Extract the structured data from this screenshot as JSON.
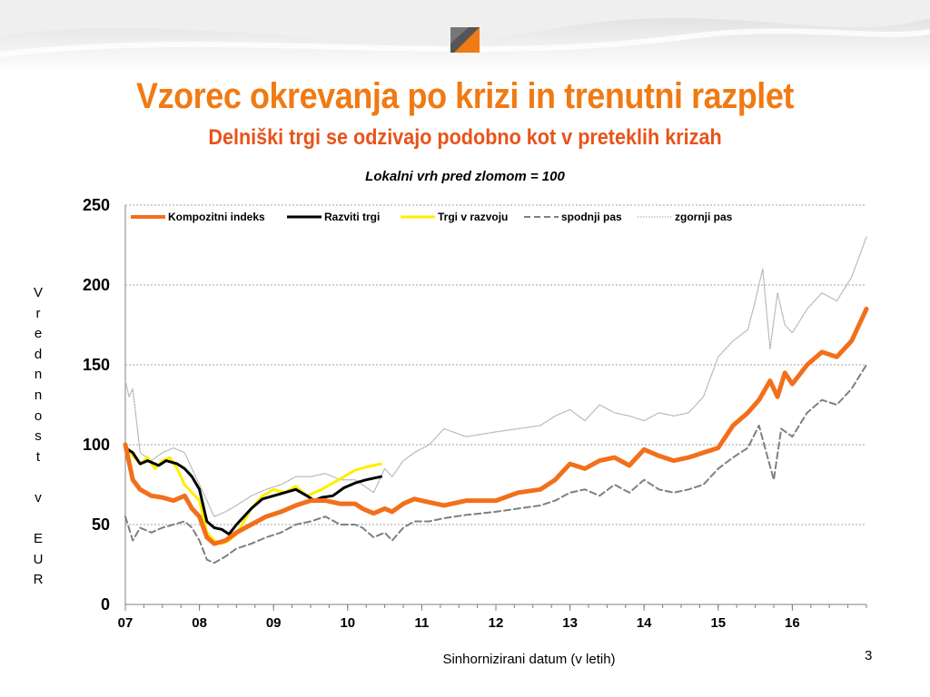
{
  "slide": {
    "title": "Vzorec okrevanja po krizi in trenutni razplet",
    "subtitle": "Delniški trgi se odzivajo podobno kot v preteklih krizah",
    "page_number": "3",
    "colors": {
      "title": "#f07a13",
      "subtitle": "#e8531a"
    }
  },
  "chart_data": {
    "type": "line",
    "title": "Lokalni vrh pred zlomom = 100",
    "xlabel": "Sinhornizirani datum (v letih)",
    "ylabel": "V\nr\ne\nd\nn\nn\no\ns\nt\n \nv\n \nE\nU\nR",
    "ylim": [
      0,
      250
    ],
    "yticks": [
      0,
      50,
      100,
      150,
      200,
      250
    ],
    "xlim": [
      2007.0,
      2017.0
    ],
    "xtick_labels": [
      "07",
      "08",
      "09",
      "10",
      "11",
      "12",
      "13",
      "14",
      "15",
      "16"
    ],
    "xtick_values": [
      2007.0,
      2008.0,
      2009.0,
      2010.0,
      2011.0,
      2012.0,
      2013.0,
      2014.0,
      2015.0,
      2016.0
    ],
    "grid": true,
    "legend_position": "top",
    "series": [
      {
        "name": "Kompozitni indeks",
        "color": "#f26f1c",
        "style": "solid",
        "width": 5,
        "x": [
          2007.0,
          2007.1,
          2007.2,
          2007.35,
          2007.5,
          2007.65,
          2007.8,
          2007.9,
          2008.0,
          2008.1,
          2008.2,
          2008.35,
          2008.5,
          2008.7,
          2008.9,
          2009.1,
          2009.3,
          2009.5,
          2009.7,
          2009.9,
          2010.1,
          2010.2,
          2010.35,
          2010.5,
          2010.6,
          2010.75,
          2010.9,
          2011.1,
          2011.3,
          2011.6,
          2012.0,
          2012.3,
          2012.6,
          2012.8,
          2013.0,
          2013.2,
          2013.4,
          2013.6,
          2013.8,
          2014.0,
          2014.2,
          2014.4,
          2014.6,
          2014.8,
          2015.0,
          2015.2,
          2015.4,
          2015.55,
          2015.7,
          2015.8,
          2015.9,
          2016.0,
          2016.2,
          2016.4,
          2016.6,
          2016.8,
          2017.0
        ],
        "y": [
          100,
          78,
          72,
          68,
          67,
          65,
          68,
          60,
          55,
          42,
          38,
          40,
          45,
          50,
          55,
          58,
          62,
          65,
          65,
          63,
          63,
          60,
          57,
          60,
          58,
          63,
          66,
          64,
          62,
          65,
          65,
          70,
          72,
          78,
          88,
          85,
          90,
          92,
          87,
          97,
          93,
          90,
          92,
          95,
          98,
          112,
          120,
          128,
          140,
          130,
          145,
          138,
          150,
          158,
          155,
          165,
          185
        ]
      },
      {
        "name": "Razviti trgi",
        "color": "#000000",
        "style": "solid",
        "width": 3,
        "x": [
          2007.0,
          2007.1,
          2007.2,
          2007.3,
          2007.45,
          2007.55,
          2007.7,
          2007.8,
          2007.9,
          2008.0,
          2008.1,
          2008.2,
          2008.3,
          2008.4,
          2008.5,
          2008.6,
          2008.7,
          2008.85,
          2009.0,
          2009.15,
          2009.3,
          2009.45,
          2009.55,
          2009.65,
          2009.8,
          2009.95,
          2010.1,
          2010.25,
          2010.45
        ],
        "y": [
          98,
          95,
          88,
          90,
          87,
          90,
          88,
          85,
          80,
          72,
          52,
          48,
          47,
          44,
          50,
          55,
          60,
          66,
          68,
          70,
          72,
          68,
          65,
          67,
          68,
          73,
          76,
          78,
          80
        ]
      },
      {
        "name": "Trgi v razvoju",
        "color": "#ffee00",
        "style": "solid",
        "width": 3,
        "x": [
          2007.0,
          2007.1,
          2007.2,
          2007.3,
          2007.4,
          2007.5,
          2007.6,
          2007.7,
          2007.8,
          2007.9,
          2008.0,
          2008.1,
          2008.2,
          2008.3,
          2008.4,
          2008.5,
          2008.6,
          2008.7,
          2008.85,
          2009.0,
          2009.15,
          2009.3,
          2009.45,
          2009.55,
          2009.65,
          2009.8,
          2009.95,
          2010.1,
          2010.25,
          2010.45
        ],
        "y": [
          100,
          93,
          88,
          92,
          85,
          90,
          92,
          85,
          75,
          70,
          65,
          45,
          40,
          38,
          40,
          44,
          52,
          60,
          68,
          72,
          70,
          74,
          68,
          70,
          72,
          76,
          80,
          84,
          86,
          88
        ]
      },
      {
        "name": "spodnji pas",
        "color": "#7f7f7f",
        "style": "dashed",
        "width": 2,
        "x": [
          2007.0,
          2007.1,
          2007.2,
          2007.35,
          2007.5,
          2007.65,
          2007.8,
          2007.9,
          2008.0,
          2008.1,
          2008.2,
          2008.35,
          2008.5,
          2008.7,
          2008.9,
          2009.1,
          2009.3,
          2009.5,
          2009.7,
          2009.9,
          2010.1,
          2010.2,
          2010.35,
          2010.5,
          2010.6,
          2010.75,
          2010.9,
          2011.1,
          2011.3,
          2011.6,
          2012.0,
          2012.3,
          2012.6,
          2012.8,
          2013.0,
          2013.2,
          2013.4,
          2013.6,
          2013.8,
          2014.0,
          2014.2,
          2014.4,
          2014.6,
          2014.8,
          2015.0,
          2015.2,
          2015.4,
          2015.55,
          2015.65,
          2015.75,
          2015.85,
          2016.0,
          2016.2,
          2016.4,
          2016.6,
          2016.8,
          2017.0
        ],
        "y": [
          55,
          40,
          48,
          45,
          48,
          50,
          52,
          48,
          40,
          28,
          26,
          30,
          35,
          38,
          42,
          45,
          50,
          52,
          55,
          50,
          50,
          48,
          42,
          45,
          40,
          48,
          52,
          52,
          54,
          56,
          58,
          60,
          62,
          65,
          70,
          72,
          68,
          75,
          70,
          78,
          72,
          70,
          72,
          75,
          85,
          92,
          98,
          112,
          95,
          78,
          110,
          105,
          120,
          128,
          125,
          135,
          150
        ]
      },
      {
        "name": "zgornji pas",
        "color": "#b5b5b5",
        "style": "dotted",
        "width": 1.3,
        "x": [
          2007.0,
          2007.05,
          2007.1,
          2007.2,
          2007.35,
          2007.5,
          2007.65,
          2007.8,
          2007.9,
          2008.0,
          2008.1,
          2008.2,
          2008.35,
          2008.5,
          2008.7,
          2008.9,
          2009.1,
          2009.3,
          2009.5,
          2009.7,
          2009.9,
          2010.1,
          2010.2,
          2010.35,
          2010.5,
          2010.6,
          2010.75,
          2010.9,
          2011.1,
          2011.3,
          2011.6,
          2012.0,
          2012.3,
          2012.6,
          2012.8,
          2013.0,
          2013.2,
          2013.4,
          2013.6,
          2013.8,
          2014.0,
          2014.2,
          2014.4,
          2014.6,
          2014.8,
          2015.0,
          2015.2,
          2015.4,
          2015.5,
          2015.6,
          2015.7,
          2015.8,
          2015.9,
          2016.0,
          2016.2,
          2016.4,
          2016.6,
          2016.8,
          2017.0
        ],
        "y": [
          140,
          130,
          135,
          95,
          90,
          95,
          98,
          95,
          85,
          75,
          65,
          55,
          58,
          62,
          68,
          72,
          75,
          80,
          80,
          82,
          78,
          78,
          75,
          70,
          85,
          80,
          90,
          95,
          100,
          110,
          105,
          108,
          110,
          112,
          118,
          122,
          115,
          125,
          120,
          118,
          115,
          120,
          118,
          120,
          130,
          155,
          165,
          172,
          190,
          210,
          160,
          195,
          175,
          170,
          185,
          195,
          190,
          205,
          230
        ]
      }
    ]
  }
}
